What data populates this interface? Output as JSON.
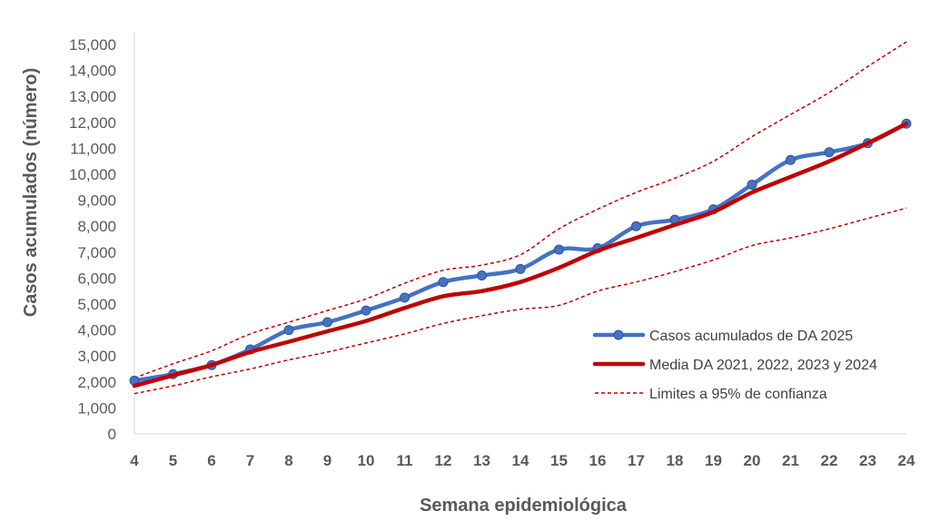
{
  "chart_data": {
    "type": "line",
    "title": "",
    "xlabel": "Semana epidemiológica",
    "ylabel": "Casos acumulados (número)",
    "x": [
      4,
      5,
      6,
      7,
      8,
      9,
      10,
      11,
      12,
      13,
      14,
      15,
      16,
      17,
      18,
      19,
      20,
      21,
      22,
      23,
      24
    ],
    "ylim": [
      0,
      15000
    ],
    "yticks": [
      0,
      1000,
      2000,
      3000,
      4000,
      5000,
      6000,
      7000,
      8000,
      9000,
      10000,
      11000,
      12000,
      13000,
      14000,
      15000
    ],
    "ytick_labels": [
      "0",
      "1,000",
      "2,000",
      "3,000",
      "4,000",
      "5,000",
      "6,000",
      "7,000",
      "8,000",
      "9,000",
      "10,000",
      "11,000",
      "12,000",
      "13,000",
      "14,000",
      "15,000"
    ],
    "grid": false,
    "legend_position": "right",
    "series": [
      {
        "name": "Casos acumulados de DA 2025",
        "color": "#4472C4",
        "style": "line-markers",
        "values": [
          2050,
          2300,
          2650,
          3250,
          4000,
          4300,
          4750,
          5250,
          5850,
          6100,
          6350,
          7100,
          7150,
          8000,
          8250,
          8650,
          9600,
          10550,
          10850,
          11200,
          11950
        ]
      },
      {
        "name": "Media DA 2021, 2022, 2023 y 2024",
        "color": "#C00000",
        "style": "thick-line",
        "values": [
          1850,
          2250,
          2650,
          3150,
          3550,
          3950,
          4350,
          4850,
          5300,
          5500,
          5850,
          6400,
          7050,
          7550,
          8050,
          8550,
          9300,
          9900,
          10500,
          11200,
          11950
        ]
      },
      {
        "name": "Limites a 95% de confianza",
        "color": "#C00000",
        "style": "dashed",
        "values": [
          2150,
          2700,
          3200,
          3850,
          4300,
          4750,
          5200,
          5800,
          6300,
          6500,
          6900,
          7900,
          8650,
          9300,
          9850,
          10500,
          11450,
          12300,
          13150,
          14150,
          15100
        ]
      },
      {
        "name": "",
        "color": "#C00000",
        "style": "dashed",
        "values": [
          1550,
          1850,
          2200,
          2500,
          2850,
          3150,
          3500,
          3850,
          4250,
          4550,
          4800,
          4950,
          5500,
          5850,
          6250,
          6700,
          7250,
          7550,
          7900,
          8300,
          8700
        ]
      }
    ]
  }
}
